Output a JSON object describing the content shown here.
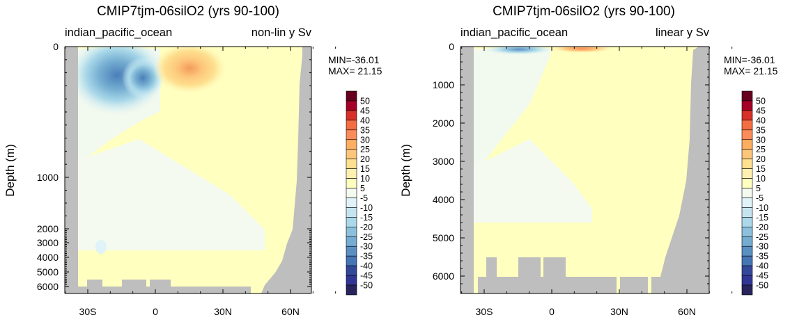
{
  "chart_data": [
    {
      "type": "heatmap",
      "title": "CMIP7tjm-06silO2 (yrs 90-100)",
      "left_label": "indian_pacific_ocean",
      "right_label": "non-lin y Sv",
      "ylabel": "Depth (m)",
      "y_scale": "non-linear",
      "y_tick_labels": [
        "0",
        "1000",
        "2000",
        "3000",
        "4000",
        "5000",
        "6000"
      ],
      "x_tick_labels": [
        "30S",
        "0",
        "30N",
        "60N"
      ],
      "min_text": "MIN=-36.01",
      "max_text": "MAX= 21.15",
      "min": -36.01,
      "max": 21.15,
      "colorbar_labels": [
        "50",
        "45",
        "40",
        "35",
        "30",
        "25",
        "20",
        "15",
        "10",
        "5",
        "-5",
        "-10",
        "-15",
        "-20",
        "-25",
        "-30",
        "-35",
        "-40",
        "-45",
        "-50"
      ],
      "colorbar_colors": [
        "#67001f",
        "#a50026",
        "#d73027",
        "#f46d43",
        "#fb8c59",
        "#fdae61",
        "#fdc67a",
        "#fee090",
        "#fff0b0",
        "#ffffbf",
        "#f4faf0",
        "#e0f3f8",
        "#c6e4ef",
        "#abd9e9",
        "#8dc0dd",
        "#74add1",
        "#5a8fc2",
        "#4575b4",
        "#34489a",
        "#313695",
        "#28245c"
      ],
      "cells": {
        "positive_cell": {
          "lat_center": 15,
          "depth_center_m": 110,
          "peak_sv": 21.15
        },
        "negative_cell": {
          "lat_center": -15,
          "depth_center_m": 140,
          "peak_sv": -36.01
        }
      }
    },
    {
      "type": "heatmap",
      "title": "CMIP7tjm-06silO2 (yrs 90-100)",
      "left_label": "indian_pacific_ocean",
      "right_label": "linear y Sv",
      "ylabel": "Depth (m)",
      "y_scale": "linear",
      "y_tick_labels": [
        "0",
        "1000",
        "2000",
        "3000",
        "4000",
        "5000",
        "6000"
      ],
      "x_tick_labels": [
        "30S",
        "0",
        "30N",
        "60N"
      ],
      "min_text": "MIN=-36.01",
      "max_text": "MAX= 21.15",
      "min": -36.01,
      "max": 21.15,
      "colorbar_labels": [
        "50",
        "45",
        "40",
        "35",
        "30",
        "25",
        "20",
        "15",
        "10",
        "5",
        "-5",
        "-10",
        "-15",
        "-20",
        "-25",
        "-30",
        "-35",
        "-40",
        "-45",
        "-50"
      ],
      "colorbar_colors": [
        "#67001f",
        "#a50026",
        "#d73027",
        "#f46d43",
        "#fb8c59",
        "#fdae61",
        "#fdc67a",
        "#fee090",
        "#fff0b0",
        "#ffffbf",
        "#f4faf0",
        "#e0f3f8",
        "#c6e4ef",
        "#abd9e9",
        "#8dc0dd",
        "#74add1",
        "#5a8fc2",
        "#4575b4",
        "#34489a",
        "#313695",
        "#28245c"
      ],
      "cells": {
        "positive_cell": {
          "lat_center": 15,
          "depth_center_m": 110,
          "peak_sv": 21.15
        },
        "negative_cell": {
          "lat_center": -15,
          "depth_center_m": 140,
          "peak_sv": -36.01
        }
      }
    }
  ]
}
